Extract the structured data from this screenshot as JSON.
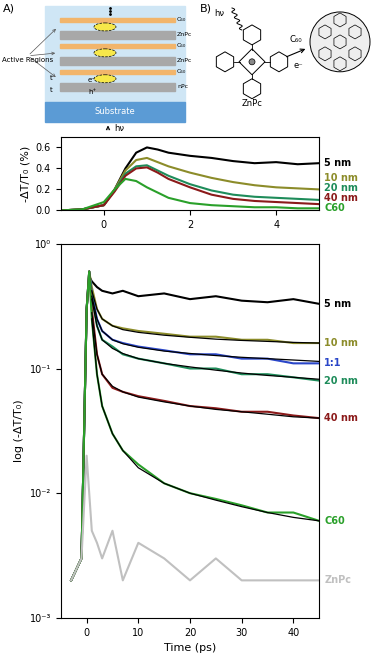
{
  "diagram": {
    "panel_a": {
      "label": "A)",
      "side_label": "Active Regions",
      "layers": [
        "C₆₀",
        "ZnPc",
        "C₆₀",
        "ZnPc",
        "C₆₀",
        "nPc"
      ],
      "thickness": "t",
      "electron": "e⁻",
      "hole": "h⁺",
      "substrate": "Substrate",
      "light": "hν"
    },
    "panel_b": {
      "label": "B)",
      "light": "hν",
      "donor": "ZnPc",
      "acceptor": "C₆₀",
      "electron": "e⁻"
    }
  },
  "chart_data": [
    {
      "type": "line",
      "y_label": "-ΔT/T₀ (%)",
      "xlim": [
        -1,
        5
      ],
      "xticks": [
        0,
        2,
        4
      ],
      "ylim": [
        0,
        0.7
      ],
      "yticks": [
        {
          "value": 0,
          "label": "0.0"
        },
        0.2,
        0.4,
        0.6
      ],
      "x": [
        -1,
        -0.5,
        0,
        0.25,
        0.5,
        0.75,
        1,
        1.25,
        1.5,
        2,
        2.5,
        3,
        3.5,
        4,
        4.5,
        5
      ],
      "series": [
        {
          "name": "5 nm",
          "color": "#000000",
          "values": [
            0,
            0.01,
            0.05,
            0.2,
            0.4,
            0.55,
            0.6,
            0.58,
            0.55,
            0.52,
            0.5,
            0.47,
            0.45,
            0.46,
            0.44,
            0.45
          ]
        },
        {
          "name": "10 nm",
          "color": "#8c8c2a",
          "values": [
            0,
            0.01,
            0.05,
            0.2,
            0.38,
            0.48,
            0.5,
            0.46,
            0.42,
            0.36,
            0.31,
            0.27,
            0.24,
            0.22,
            0.21,
            0.2
          ]
        },
        {
          "name": "20 nm",
          "color": "#1e8c5a",
          "values": [
            0,
            0.01,
            0.05,
            0.19,
            0.35,
            0.42,
            0.43,
            0.38,
            0.33,
            0.25,
            0.19,
            0.15,
            0.13,
            0.12,
            0.11,
            0.1
          ]
        },
        {
          "name": "40 nm",
          "color": "#8b1a1a",
          "values": [
            0,
            0.01,
            0.05,
            0.18,
            0.33,
            0.4,
            0.41,
            0.36,
            0.3,
            0.22,
            0.15,
            0.11,
            0.09,
            0.08,
            0.07,
            0.06
          ]
        },
        {
          "name": "C60",
          "color": "#2aa02a",
          "values": [
            0,
            0.01,
            0.08,
            0.2,
            0.3,
            0.28,
            0.22,
            0.17,
            0.12,
            0.07,
            0.05,
            0.04,
            0.03,
            0.03,
            0.02,
            0.02
          ]
        }
      ]
    },
    {
      "type": "line",
      "log": "y",
      "x_label": "Time (ps)",
      "y_label": "log (-ΔT/T₀)",
      "xlim": [
        -5,
        45
      ],
      "xticks": [
        0,
        10,
        20,
        30,
        40
      ],
      "ylim": [
        0.001,
        1
      ],
      "yticks": [
        {
          "value": 0.001,
          "label": "10⁻³"
        },
        {
          "value": 0.01,
          "label": "10⁻²"
        },
        {
          "value": 0.1,
          "label": "10⁻¹"
        },
        {
          "value": 1,
          "label": "10⁰"
        }
      ],
      "x": [
        -3,
        -1,
        0,
        0.5,
        1,
        2,
        3,
        5,
        7,
        10,
        15,
        20,
        25,
        30,
        35,
        40,
        45
      ],
      "series": [
        {
          "name": "5 nm",
          "color": "#000000",
          "values": [
            0.002,
            0.003,
            0.3,
            0.55,
            0.5,
            0.45,
            0.42,
            0.4,
            0.42,
            0.38,
            0.4,
            0.36,
            0.38,
            0.35,
            0.34,
            0.36,
            0.33
          ]
        },
        {
          "name": "10 nm",
          "color": "#8c8c2a",
          "values": [
            0.002,
            0.003,
            0.3,
            0.6,
            0.45,
            0.3,
            0.25,
            0.22,
            0.21,
            0.2,
            0.19,
            0.18,
            0.18,
            0.17,
            0.17,
            0.16,
            0.16
          ],
          "fit": [
            null,
            null,
            null,
            null,
            0.42,
            0.3,
            0.25,
            0.22,
            0.205,
            0.195,
            0.185,
            0.178,
            0.172,
            0.168,
            0.165,
            0.162,
            0.16
          ]
        },
        {
          "name": "1:1",
          "color": "#2a46c8",
          "values": [
            0.002,
            0.003,
            0.3,
            0.6,
            0.4,
            0.25,
            0.2,
            0.17,
            0.16,
            0.15,
            0.14,
            0.13,
            0.13,
            0.12,
            0.12,
            0.11,
            0.11
          ],
          "fit": [
            null,
            null,
            null,
            null,
            0.38,
            0.25,
            0.2,
            0.17,
            0.158,
            0.148,
            0.138,
            0.132,
            0.127,
            0.123,
            0.12,
            0.117,
            0.114
          ]
        },
        {
          "name": "20 nm",
          "color": "#1e8c5a",
          "values": [
            0.002,
            0.003,
            0.3,
            0.6,
            0.38,
            0.22,
            0.17,
            0.15,
            0.13,
            0.12,
            0.11,
            0.1,
            0.1,
            0.09,
            0.09,
            0.085,
            0.08
          ],
          "fit": [
            null,
            null,
            null,
            null,
            0.36,
            0.22,
            0.17,
            0.145,
            0.132,
            0.12,
            0.11,
            0.103,
            0.097,
            0.092,
            0.088,
            0.085,
            0.082
          ]
        },
        {
          "name": "40 nm",
          "color": "#8b1a1a",
          "values": [
            0.002,
            0.003,
            0.3,
            0.6,
            0.3,
            0.13,
            0.09,
            0.07,
            0.065,
            0.06,
            0.055,
            0.05,
            0.048,
            0.045,
            0.045,
            0.042,
            0.04
          ],
          "fit": [
            null,
            null,
            null,
            null,
            0.28,
            0.13,
            0.09,
            0.072,
            0.065,
            0.059,
            0.054,
            0.05,
            0.047,
            0.045,
            0.043,
            0.041,
            0.04
          ]
        },
        {
          "name": "C60",
          "color": "#2aa02a",
          "values": [
            0.002,
            0.003,
            0.3,
            0.6,
            0.25,
            0.09,
            0.05,
            0.03,
            0.022,
            0.017,
            0.012,
            0.01,
            0.009,
            0.008,
            0.007,
            0.007,
            0.006
          ],
          "fit": [
            null,
            null,
            null,
            null,
            0.25,
            0.09,
            0.05,
            0.03,
            0.022,
            0.016,
            0.012,
            0.01,
            0.0088,
            0.0078,
            0.007,
            0.0064,
            0.006
          ]
        },
        {
          "name": "ZnPc",
          "color": "#c0c0c0",
          "values": [
            0.002,
            0.003,
            0.02,
            0.01,
            0.005,
            0.004,
            0.003,
            0.005,
            0.002,
            0.004,
            0.003,
            0.002,
            0.003,
            0.002,
            0.002,
            0.002,
            0.002
          ]
        }
      ]
    }
  ]
}
